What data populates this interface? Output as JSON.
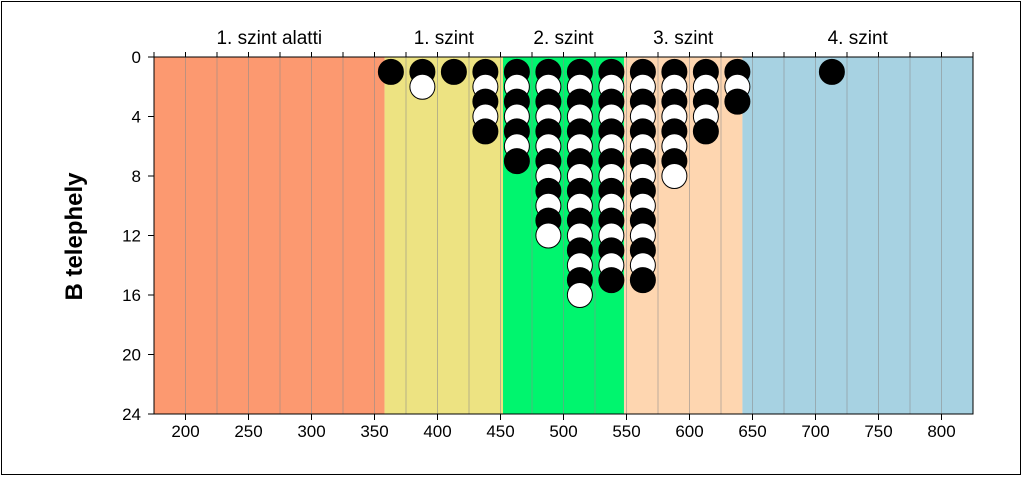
{
  "chart_data": {
    "type": "scatter",
    "ylabel": "B telephely",
    "xlim": [
      175,
      825
    ],
    "ylim": [
      24,
      0
    ],
    "x_ticks": [
      200,
      250,
      300,
      350,
      400,
      450,
      500,
      550,
      600,
      650,
      700,
      750,
      800
    ],
    "y_ticks": [
      0,
      4,
      8,
      12,
      16,
      20,
      24
    ],
    "x_gridlines": [
      175,
      200,
      225,
      250,
      275,
      300,
      325,
      350,
      375,
      400,
      425,
      450,
      475,
      500,
      525,
      550,
      575,
      600,
      625,
      650,
      675,
      700,
      725,
      750,
      775,
      800,
      825
    ],
    "bands": [
      {
        "label": "1. szint alatti",
        "x_start": 175,
        "x_end": 358,
        "color": "#fc9970"
      },
      {
        "label": "1. szint",
        "x_start": 358,
        "x_end": 452,
        "color": "#ede382"
      },
      {
        "label": "2. szint",
        "x_start": 452,
        "x_end": 548,
        "color": "#00f56e"
      },
      {
        "label": "3. szint",
        "x_start": 548,
        "x_end": 642,
        "color": "#fed6b0"
      },
      {
        "label": "4. szint",
        "x_start": 642,
        "x_end": 825,
        "color": "#a7d2e2"
      }
    ],
    "marker_colors": {
      "filled": "#000000",
      "open": "#ffffff"
    },
    "columns": [
      {
        "x": 363,
        "points": [
          "filled"
        ]
      },
      {
        "x": 388,
        "points": [
          "filled",
          "open"
        ]
      },
      {
        "x": 413,
        "points": [
          "filled"
        ]
      },
      {
        "x": 438,
        "points": [
          "filled",
          "open",
          "filled",
          "open",
          "filled"
        ]
      },
      {
        "x": 463,
        "points": [
          "filled",
          "open",
          "filled",
          "open",
          "filled",
          "open",
          "filled"
        ]
      },
      {
        "x": 488,
        "points": [
          "filled",
          "open",
          "filled",
          "open",
          "filled",
          "open",
          "filled",
          "open",
          "filled",
          "open",
          "filled",
          "open"
        ]
      },
      {
        "x": 513,
        "points": [
          "filled",
          "open",
          "filled",
          "open",
          "filled",
          "open",
          "filled",
          "open",
          "filled",
          "open",
          "filled",
          "open",
          "filled",
          "open",
          "filled",
          "open"
        ]
      },
      {
        "x": 538,
        "points": [
          "filled",
          "open",
          "filled",
          "open",
          "filled",
          "open",
          "filled",
          "open",
          "filled",
          "open",
          "filled",
          "open",
          "filled",
          "open",
          "filled"
        ]
      },
      {
        "x": 563,
        "points": [
          "filled",
          "open",
          "filled",
          "open",
          "filled",
          "open",
          "filled",
          "open",
          "filled",
          "open",
          "filled",
          "open",
          "filled",
          "open",
          "filled"
        ]
      },
      {
        "x": 588,
        "points": [
          "filled",
          "open",
          "filled",
          "open",
          "filled",
          "open",
          "filled",
          "open"
        ]
      },
      {
        "x": 613,
        "points": [
          "filled",
          "open",
          "filled",
          "open",
          "filled"
        ]
      },
      {
        "x": 638,
        "points": [
          "filled",
          "open",
          "filled"
        ]
      },
      {
        "x": 713,
        "points": [
          "filled"
        ]
      }
    ]
  }
}
